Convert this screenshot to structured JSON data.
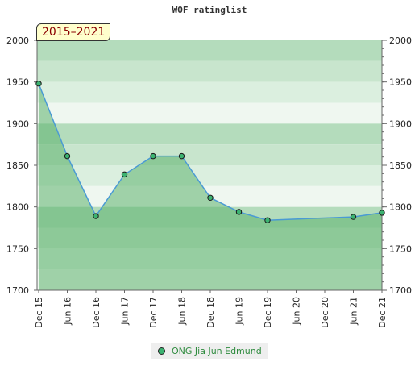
{
  "chart_data": {
    "type": "area",
    "title": "WOF ratinglist",
    "badge": "2015–2021",
    "categories": [
      "Dec 15",
      "Jun 16",
      "Dec 16",
      "Jun 17",
      "Dec 17",
      "Jun 18",
      "Dec 18",
      "Jun 19",
      "Dec 19",
      "Jun 20",
      "Dec 20",
      "Jun 21",
      "Dec 21"
    ],
    "ylim": [
      1700,
      2000
    ],
    "yticks": [
      1700,
      1750,
      1800,
      1850,
      1900,
      1950,
      2000
    ],
    "series": [
      {
        "name": "ONG Jia Jun Edmund",
        "points": [
          {
            "x": 0,
            "y": 1948
          },
          {
            "x": 1,
            "y": 1861
          },
          {
            "x": 2,
            "y": 1789
          },
          {
            "x": 3,
            "y": 1839
          },
          {
            "x": 4,
            "y": 1861
          },
          {
            "x": 5,
            "y": 1861
          },
          {
            "x": 6,
            "y": 1811
          },
          {
            "x": 7,
            "y": 1794
          },
          {
            "x": 8,
            "y": 1784
          },
          {
            "x": 11,
            "y": 1788
          },
          {
            "x": 12,
            "y": 1793
          }
        ]
      }
    ],
    "colors": {
      "line": "#4a9ad4",
      "area": "#5cb36d",
      "marker": "#3cb371"
    },
    "legend_position": "bottom"
  }
}
